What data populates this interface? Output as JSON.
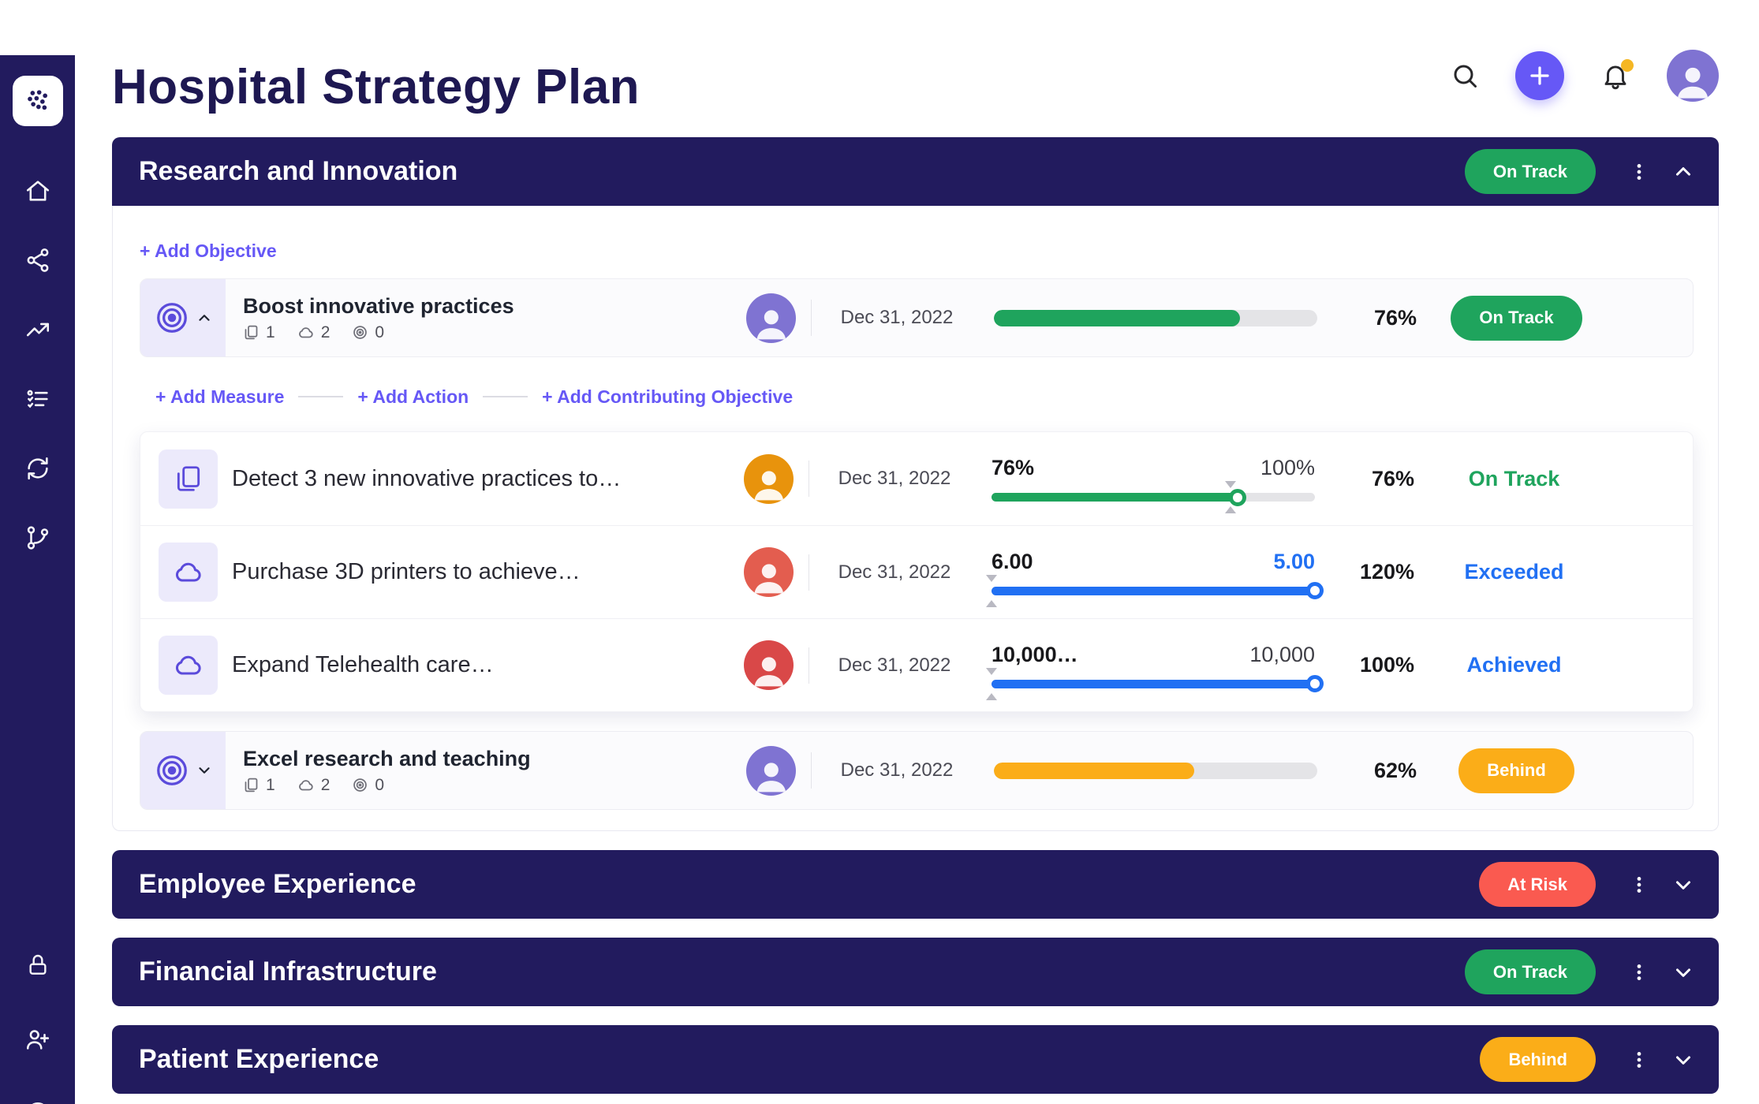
{
  "page": {
    "title": "Hospital Strategy Plan"
  },
  "colors": {
    "navy": "#221B5E",
    "accent": "#6658F6",
    "green": "#1FA45D",
    "yellow": "#FBAD18",
    "red": "#FA5A50",
    "blue": "#2170F3"
  },
  "sidebar": {
    "icons": [
      "logo",
      "home",
      "org-chart",
      "trending-up",
      "goals",
      "sync",
      "git-branch",
      "lock",
      "invite-user",
      "help"
    ]
  },
  "topbar": {
    "icons": [
      "search",
      "add",
      "notifications",
      "avatar"
    ],
    "notification_badge": true
  },
  "sections": [
    {
      "title": "Research and Innovation",
      "status": "On Track",
      "add_objective": "+ Add Objective",
      "add_links": [
        "+ Add Measure",
        "+ Add Action",
        "+ Add Contributing Objective"
      ],
      "objectives": [
        {
          "title": "Boost innovative practices",
          "counts": {
            "measures": "1",
            "actions": "2",
            "contributing": "0"
          },
          "due": "Dec 31, 2022",
          "progress": 76,
          "percent": "76%",
          "status": "On Track"
        },
        {
          "title": "Excel research and teaching",
          "counts": {
            "measures": "1",
            "actions": "2",
            "contributing": "0"
          },
          "due": "Dec 31, 2022",
          "progress": 62,
          "percent": "62%",
          "status": "Behind"
        }
      ],
      "measures": [
        {
          "title": "Detect 3 new innovative practices to…",
          "due": "Dec 31, 2022",
          "current_label": "76%",
          "target_label": "100%",
          "fill": 76,
          "marker": 74,
          "percent": "76%",
          "status": "On Track"
        },
        {
          "title": "Purchase 3D printers to achieve…",
          "due": "Dec 31, 2022",
          "current_label": "6.00",
          "target_label": "5.00",
          "fill": 100,
          "marker": 0,
          "percent": "120%",
          "status": "Exceeded"
        },
        {
          "title": "Expand Telehealth care…",
          "due": "Dec 31, 2022",
          "current_label": "10,000…",
          "target_label": "10,000",
          "fill": 100,
          "marker": 0,
          "percent": "100%",
          "status": "Achieved"
        }
      ]
    },
    {
      "title": "Employee Experience",
      "status": "At Risk"
    },
    {
      "title": "Financial Infrastructure",
      "status": "On Track"
    },
    {
      "title": "Patient Experience",
      "status": "Behind"
    }
  ]
}
